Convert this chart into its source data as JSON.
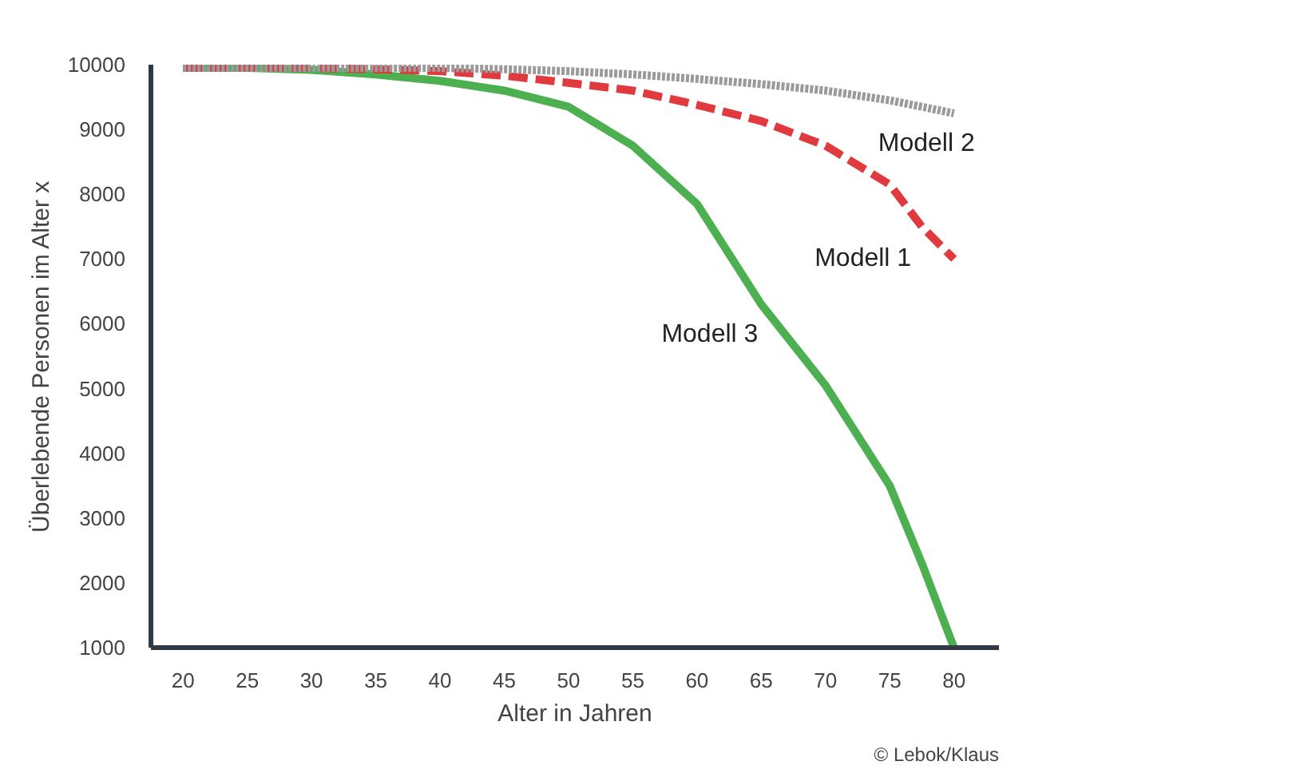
{
  "chart_data": {
    "type": "line",
    "xlabel": "Alter in Jahren",
    "ylabel": "Überlebende Personen im Alter x",
    "x": [
      20,
      25,
      30,
      35,
      40,
      45,
      50,
      55,
      60,
      65,
      70,
      75,
      77.5,
      80
    ],
    "series": [
      {
        "name": "Modell 2",
        "color": "#9a9a9a",
        "line_style": "dotted",
        "values": [
          9950,
          9950,
          9950,
          9950,
          9950,
          9930,
          9900,
          9850,
          9780,
          9700,
          9600,
          9450,
          9350,
          9250
        ]
      },
      {
        "name": "Modell 1",
        "color": "#e03a3e",
        "line_style": "dashed",
        "values": [
          9950,
          9950,
          9950,
          9930,
          9900,
          9830,
          9720,
          9600,
          9380,
          9130,
          8750,
          8150,
          7500,
          7000
        ]
      },
      {
        "name": "Modell 3",
        "color": "#4caf50",
        "line_style": "solid",
        "values": [
          9950,
          9950,
          9920,
          9850,
          9750,
          9600,
          9350,
          8750,
          7850,
          6300,
          5050,
          3500,
          2300,
          1000
        ]
      }
    ],
    "xlim": [
      17.5,
      83.5
    ],
    "xticks": [
      20,
      25,
      30,
      35,
      40,
      45,
      50,
      55,
      60,
      65,
      70,
      75,
      80
    ],
    "ylim": [
      1000,
      10000
    ],
    "yticks": [
      1000,
      2000,
      3000,
      4000,
      5000,
      6000,
      7000,
      8000,
      9000,
      10000
    ],
    "grid": false,
    "annotations": [
      "© Lebok/Klaus"
    ]
  }
}
